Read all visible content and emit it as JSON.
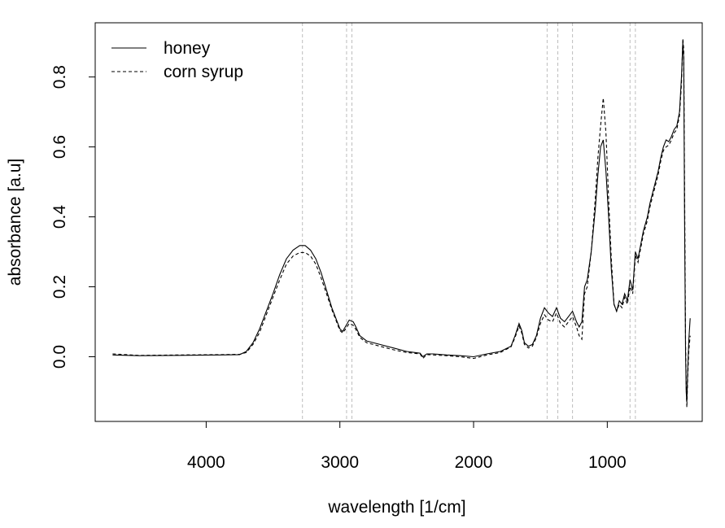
{
  "chart_data": {
    "type": "line",
    "xlabel": "wavelength [1/cm]",
    "ylabel": "absorbance [a.u]",
    "x_reversed": true,
    "xlim": [
      4830,
      290
    ],
    "ylim": [
      -0.185,
      0.955
    ],
    "x_ticks": [
      4000,
      3000,
      2000,
      1000
    ],
    "x_tick_labels": [
      "4000",
      "3000",
      "2000",
      "1000"
    ],
    "y_ticks": [
      0.0,
      0.2,
      0.4,
      0.6,
      0.8
    ],
    "y_tick_labels": [
      "0.0",
      "0.2",
      "0.4",
      "0.6",
      "0.8"
    ],
    "legend_position": "top-left",
    "grid": false,
    "reference_lines_x": [
      3280,
      2950,
      2910,
      1450,
      1370,
      1260,
      830,
      790
    ],
    "series": [
      {
        "name": "honey",
        "style": "solid",
        "color": "#000000",
        "points": [
          [
            4700,
            0.005
          ],
          [
            4500,
            0.003
          ],
          [
            4200,
            0.004
          ],
          [
            3900,
            0.005
          ],
          [
            3750,
            0.006
          ],
          [
            3700,
            0.015
          ],
          [
            3650,
            0.04
          ],
          [
            3600,
            0.08
          ],
          [
            3550,
            0.13
          ],
          [
            3500,
            0.18
          ],
          [
            3450,
            0.235
          ],
          [
            3400,
            0.28
          ],
          [
            3350,
            0.305
          ],
          [
            3300,
            0.318
          ],
          [
            3260,
            0.318
          ],
          [
            3220,
            0.305
          ],
          [
            3180,
            0.28
          ],
          [
            3140,
            0.24
          ],
          [
            3100,
            0.19
          ],
          [
            3060,
            0.14
          ],
          [
            3020,
            0.1
          ],
          [
            3000,
            0.08
          ],
          [
            2980,
            0.072
          ],
          [
            2960,
            0.085
          ],
          [
            2930,
            0.105
          ],
          [
            2900,
            0.1
          ],
          [
            2880,
            0.085
          ],
          [
            2850,
            0.06
          ],
          [
            2800,
            0.045
          ],
          [
            2700,
            0.035
          ],
          [
            2600,
            0.025
          ],
          [
            2500,
            0.015
          ],
          [
            2400,
            0.01
          ],
          [
            2380,
            0.0
          ],
          [
            2350,
            0.008
          ],
          [
            2300,
            0.008
          ],
          [
            2200,
            0.005
          ],
          [
            2100,
            0.003
          ],
          [
            2000,
            0.0
          ],
          [
            1900,
            0.008
          ],
          [
            1800,
            0.015
          ],
          [
            1720,
            0.03
          ],
          [
            1690,
            0.06
          ],
          [
            1660,
            0.095
          ],
          [
            1640,
            0.075
          ],
          [
            1620,
            0.04
          ],
          [
            1590,
            0.03
          ],
          [
            1560,
            0.035
          ],
          [
            1530,
            0.06
          ],
          [
            1500,
            0.11
          ],
          [
            1470,
            0.14
          ],
          [
            1440,
            0.125
          ],
          [
            1410,
            0.115
          ],
          [
            1380,
            0.14
          ],
          [
            1350,
            0.11
          ],
          [
            1320,
            0.1
          ],
          [
            1290,
            0.115
          ],
          [
            1260,
            0.13
          ],
          [
            1230,
            0.1
          ],
          [
            1210,
            0.085
          ],
          [
            1190,
            0.1
          ],
          [
            1170,
            0.2
          ],
          [
            1150,
            0.22
          ],
          [
            1120,
            0.3
          ],
          [
            1090,
            0.42
          ],
          [
            1070,
            0.52
          ],
          [
            1050,
            0.6
          ],
          [
            1030,
            0.62
          ],
          [
            1010,
            0.53
          ],
          [
            990,
            0.4
          ],
          [
            970,
            0.25
          ],
          [
            950,
            0.15
          ],
          [
            930,
            0.13
          ],
          [
            910,
            0.16
          ],
          [
            890,
            0.15
          ],
          [
            870,
            0.18
          ],
          [
            850,
            0.16
          ],
          [
            830,
            0.22
          ],
          [
            810,
            0.19
          ],
          [
            790,
            0.3
          ],
          [
            770,
            0.28
          ],
          [
            750,
            0.32
          ],
          [
            730,
            0.36
          ],
          [
            700,
            0.4
          ],
          [
            680,
            0.44
          ],
          [
            660,
            0.47
          ],
          [
            640,
            0.5
          ],
          [
            620,
            0.53
          ],
          [
            600,
            0.57
          ],
          [
            580,
            0.6
          ],
          [
            560,
            0.62
          ],
          [
            540,
            0.615
          ],
          [
            520,
            0.63
          ],
          [
            500,
            0.65
          ],
          [
            480,
            0.66
          ],
          [
            460,
            0.7
          ],
          [
            445,
            0.8
          ],
          [
            435,
            0.9
          ],
          [
            428,
            0.85
          ],
          [
            422,
            0.4
          ],
          [
            415,
            0.02
          ],
          [
            410,
            -0.1
          ],
          [
            405,
            -0.13
          ],
          [
            398,
            -0.03
          ],
          [
            390,
            0.05
          ],
          [
            380,
            0.11
          ]
        ]
      },
      {
        "name": "corn syrup",
        "style": "dashed",
        "color": "#000000",
        "points": [
          [
            4700,
            0.008
          ],
          [
            4500,
            0.004
          ],
          [
            4200,
            0.005
          ],
          [
            3900,
            0.006
          ],
          [
            3750,
            0.007
          ],
          [
            3700,
            0.012
          ],
          [
            3650,
            0.035
          ],
          [
            3600,
            0.07
          ],
          [
            3550,
            0.12
          ],
          [
            3500,
            0.17
          ],
          [
            3450,
            0.22
          ],
          [
            3400,
            0.265
          ],
          [
            3350,
            0.288
          ],
          [
            3300,
            0.298
          ],
          [
            3260,
            0.298
          ],
          [
            3220,
            0.288
          ],
          [
            3180,
            0.265
          ],
          [
            3140,
            0.225
          ],
          [
            3100,
            0.18
          ],
          [
            3060,
            0.135
          ],
          [
            3020,
            0.095
          ],
          [
            3000,
            0.075
          ],
          [
            2980,
            0.068
          ],
          [
            2960,
            0.078
          ],
          [
            2930,
            0.095
          ],
          [
            2900,
            0.09
          ],
          [
            2880,
            0.078
          ],
          [
            2850,
            0.055
          ],
          [
            2800,
            0.04
          ],
          [
            2700,
            0.03
          ],
          [
            2600,
            0.02
          ],
          [
            2500,
            0.012
          ],
          [
            2400,
            0.008
          ],
          [
            2380,
            -0.005
          ],
          [
            2350,
            0.006
          ],
          [
            2300,
            0.005
          ],
          [
            2200,
            0.003
          ],
          [
            2100,
            0.0
          ],
          [
            2000,
            -0.005
          ],
          [
            1900,
            0.005
          ],
          [
            1800,
            0.012
          ],
          [
            1720,
            0.028
          ],
          [
            1690,
            0.055
          ],
          [
            1660,
            0.088
          ],
          [
            1640,
            0.068
          ],
          [
            1620,
            0.035
          ],
          [
            1590,
            0.025
          ],
          [
            1560,
            0.03
          ],
          [
            1530,
            0.055
          ],
          [
            1500,
            0.095
          ],
          [
            1470,
            0.12
          ],
          [
            1440,
            0.105
          ],
          [
            1410,
            0.1
          ],
          [
            1380,
            0.125
          ],
          [
            1350,
            0.095
          ],
          [
            1320,
            0.085
          ],
          [
            1290,
            0.1
          ],
          [
            1260,
            0.115
          ],
          [
            1230,
            0.085
          ],
          [
            1210,
            0.06
          ],
          [
            1190,
            0.05
          ],
          [
            1170,
            0.18
          ],
          [
            1150,
            0.2
          ],
          [
            1120,
            0.3
          ],
          [
            1090,
            0.45
          ],
          [
            1070,
            0.57
          ],
          [
            1050,
            0.66
          ],
          [
            1030,
            0.74
          ],
          [
            1010,
            0.64
          ],
          [
            990,
            0.45
          ],
          [
            970,
            0.28
          ],
          [
            950,
            0.15
          ],
          [
            930,
            0.13
          ],
          [
            910,
            0.15
          ],
          [
            890,
            0.14
          ],
          [
            870,
            0.17
          ],
          [
            850,
            0.15
          ],
          [
            830,
            0.2
          ],
          [
            810,
            0.18
          ],
          [
            790,
            0.29
          ],
          [
            770,
            0.27
          ],
          [
            750,
            0.31
          ],
          [
            730,
            0.35
          ],
          [
            700,
            0.39
          ],
          [
            680,
            0.43
          ],
          [
            660,
            0.46
          ],
          [
            640,
            0.49
          ],
          [
            620,
            0.52
          ],
          [
            600,
            0.56
          ],
          [
            580,
            0.59
          ],
          [
            560,
            0.6
          ],
          [
            540,
            0.605
          ],
          [
            520,
            0.62
          ],
          [
            500,
            0.64
          ],
          [
            480,
            0.65
          ],
          [
            460,
            0.69
          ],
          [
            445,
            0.78
          ],
          [
            435,
            0.91
          ],
          [
            428,
            0.88
          ],
          [
            422,
            0.5
          ],
          [
            415,
            0.05
          ],
          [
            410,
            -0.08
          ],
          [
            405,
            -0.145
          ],
          [
            398,
            -0.05
          ],
          [
            390,
            0.02
          ],
          [
            380,
            0.06
          ]
        ]
      }
    ]
  }
}
